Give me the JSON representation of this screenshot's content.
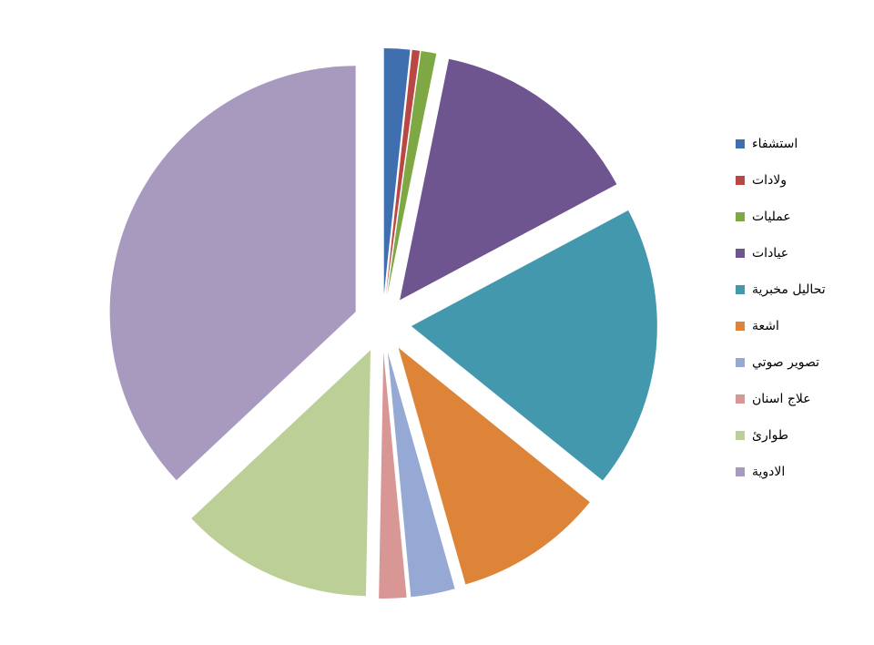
{
  "chart_data": {
    "type": "pie",
    "categories": [
      "استشفاء",
      "ولادات",
      "عمليات",
      "عيادات",
      "تحاليل مخبرية",
      "اشعة",
      "تصوير صوتي",
      "علاج اسنان",
      "طوارئ",
      "الادوية"
    ],
    "values": [
      1.7,
      0.5,
      1.0,
      14.0,
      18.6,
      9.8,
      2.9,
      1.8,
      12.7,
      37.0
    ],
    "colors": [
      "#3f6fae",
      "#b94743",
      "#7ea843",
      "#6f5590",
      "#4398ae",
      "#dd8439",
      "#95a9d4",
      "#d89694",
      "#bccf96",
      "#a89abf"
    ],
    "legend": "right"
  }
}
